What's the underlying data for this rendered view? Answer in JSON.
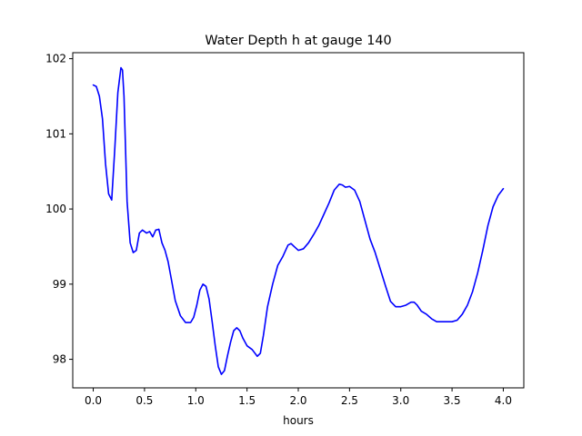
{
  "chart_data": {
    "type": "line",
    "title": "Water Depth h at gauge 140",
    "xlabel": "hours",
    "ylabel": "",
    "xlim": [
      -0.2,
      4.2
    ],
    "ylim": [
      97.62,
      102.08
    ],
    "xticks": [
      0.0,
      0.5,
      1.0,
      1.5,
      2.0,
      2.5,
      3.0,
      3.5,
      4.0
    ],
    "xtick_labels": [
      "0.0",
      "0.5",
      "1.0",
      "1.5",
      "2.0",
      "2.5",
      "3.0",
      "3.5",
      "4.0"
    ],
    "yticks": [
      98,
      99,
      100,
      101,
      102
    ],
    "ytick_labels": [
      "98",
      "99",
      "100",
      "101",
      "102"
    ],
    "grid": false,
    "series": [
      {
        "color": "#0000ff",
        "x": [
          0.0,
          0.03,
          0.06,
          0.09,
          0.12,
          0.15,
          0.18,
          0.21,
          0.24,
          0.27,
          0.285,
          0.3,
          0.33,
          0.36,
          0.39,
          0.42,
          0.45,
          0.48,
          0.52,
          0.55,
          0.58,
          0.61,
          0.64,
          0.67,
          0.7,
          0.73,
          0.76,
          0.8,
          0.85,
          0.9,
          0.95,
          0.98,
          1.01,
          1.04,
          1.07,
          1.1,
          1.13,
          1.16,
          1.19,
          1.22,
          1.25,
          1.28,
          1.31,
          1.34,
          1.37,
          1.4,
          1.43,
          1.46,
          1.5,
          1.55,
          1.6,
          1.63,
          1.66,
          1.7,
          1.75,
          1.8,
          1.85,
          1.9,
          1.93,
          1.96,
          2.0,
          2.05,
          2.1,
          2.15,
          2.2,
          2.25,
          2.3,
          2.35,
          2.4,
          2.43,
          2.46,
          2.5,
          2.55,
          2.6,
          2.65,
          2.7,
          2.75,
          2.8,
          2.85,
          2.9,
          2.95,
          3.0,
          3.05,
          3.1,
          3.13,
          3.16,
          3.2,
          3.25,
          3.3,
          3.35,
          3.4,
          3.45,
          3.5,
          3.55,
          3.6,
          3.65,
          3.7,
          3.75,
          3.8,
          3.85,
          3.9,
          3.95,
          4.0
        ],
        "y": [
          101.65,
          101.63,
          101.5,
          101.2,
          100.6,
          100.2,
          100.12,
          100.8,
          101.55,
          101.88,
          101.85,
          101.5,
          100.1,
          99.55,
          99.42,
          99.45,
          99.68,
          99.72,
          99.68,
          99.7,
          99.63,
          99.72,
          99.73,
          99.55,
          99.45,
          99.3,
          99.08,
          98.78,
          98.58,
          98.49,
          98.49,
          98.56,
          98.72,
          98.92,
          99.0,
          98.97,
          98.8,
          98.5,
          98.18,
          97.9,
          97.8,
          97.85,
          98.05,
          98.23,
          98.38,
          98.42,
          98.38,
          98.28,
          98.18,
          98.13,
          98.04,
          98.08,
          98.32,
          98.7,
          99.0,
          99.25,
          99.37,
          99.52,
          99.54,
          99.5,
          99.45,
          99.47,
          99.55,
          99.66,
          99.78,
          99.93,
          100.08,
          100.25,
          100.33,
          100.32,
          100.29,
          100.3,
          100.25,
          100.1,
          99.85,
          99.6,
          99.42,
          99.2,
          98.98,
          98.77,
          98.7,
          98.7,
          98.72,
          98.76,
          98.76,
          98.72,
          98.64,
          98.6,
          98.54,
          98.5,
          98.5,
          98.5,
          98.5,
          98.52,
          98.6,
          98.72,
          98.9,
          99.15,
          99.45,
          99.78,
          100.03,
          100.18,
          100.27
        ]
      }
    ]
  }
}
